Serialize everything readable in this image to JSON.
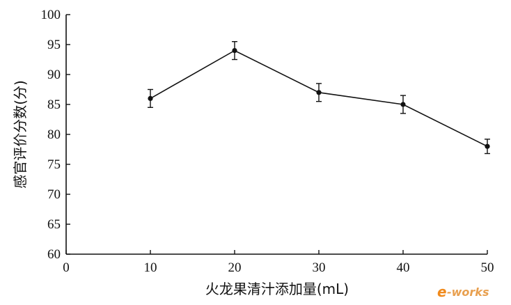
{
  "chart_data": {
    "type": "line",
    "xlabel": "火龙果清汁添加量(mL)",
    "ylabel": "感官评价分数(分)",
    "xlim": [
      0,
      50
    ],
    "ylim": [
      60,
      100
    ],
    "x_ticks": [
      0,
      10,
      20,
      30,
      40,
      50
    ],
    "y_ticks": [
      60,
      65,
      70,
      75,
      80,
      85,
      90,
      95,
      100
    ],
    "grid": false,
    "series": [
      {
        "x": [
          10,
          20,
          30,
          40,
          50
        ],
        "y": [
          86,
          94,
          87,
          85,
          78
        ],
        "error": [
          1.5,
          1.5,
          1.5,
          1.5,
          1.2
        ]
      }
    ]
  },
  "watermark": {
    "prefix": "e",
    "suffix": "-works"
  },
  "colors": {
    "line": "#111111",
    "watermark": "#f08a1c"
  }
}
